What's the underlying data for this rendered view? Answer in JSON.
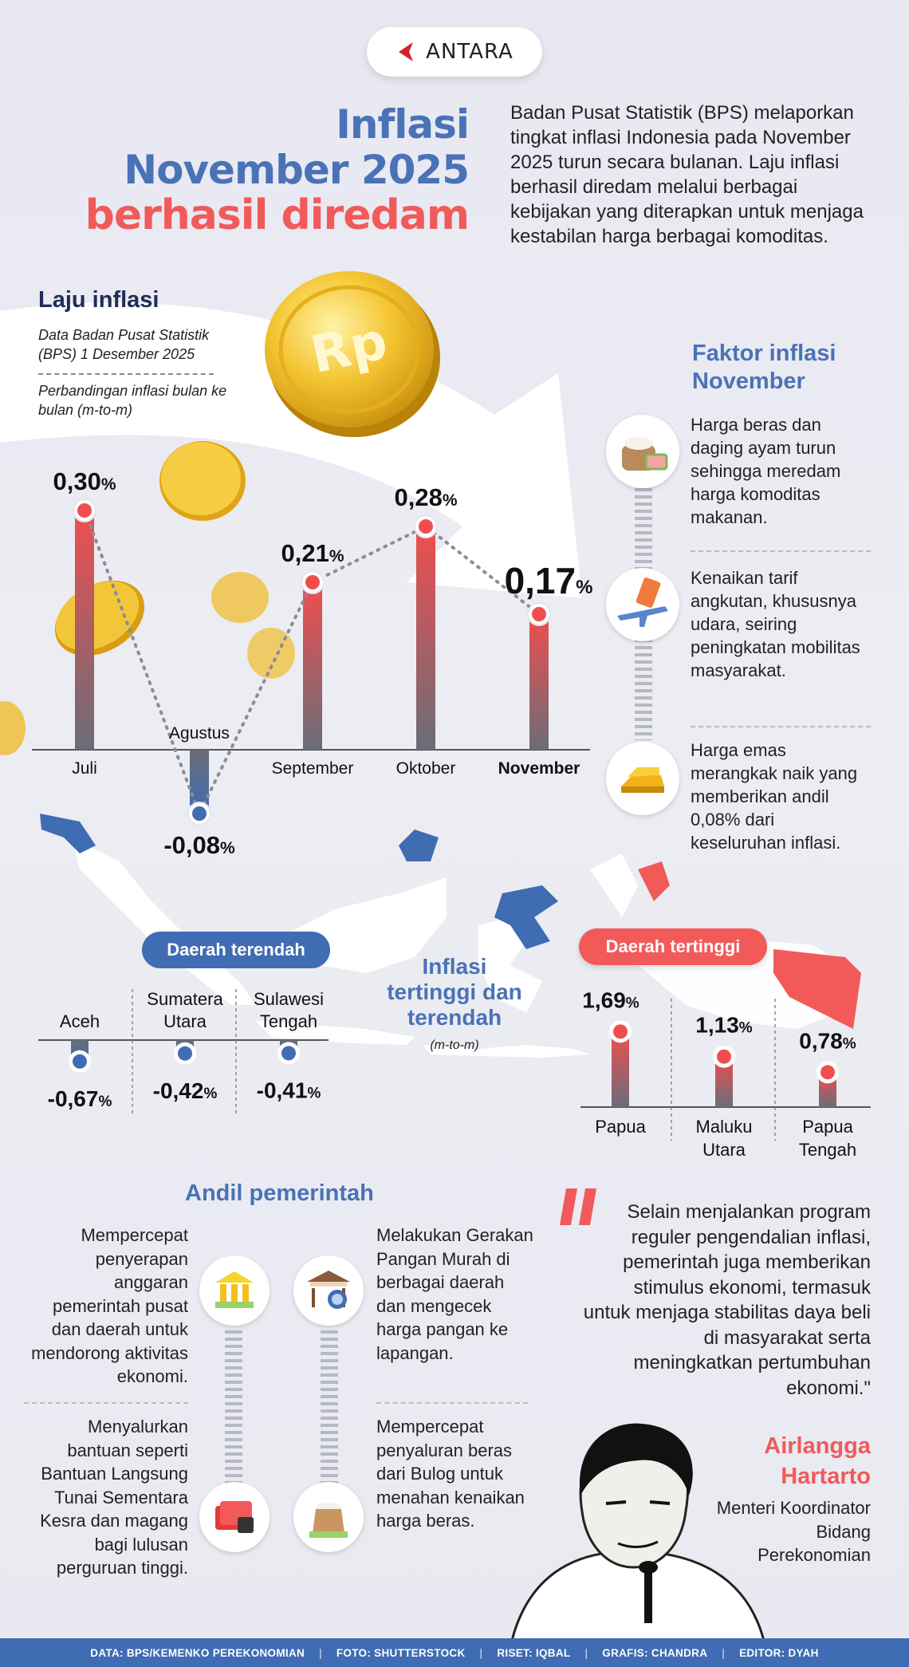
{
  "brand": {
    "logo_text": "ANTARA",
    "accent": "#f15a5a",
    "blue": "#4a72b6"
  },
  "title": {
    "line1": "Inflasi",
    "line2": "November 2025",
    "line3": "berhasil diredam"
  },
  "intro": "Badan Pusat Statistik (BPS) melaporkan tingkat inflasi Indonesia pada November 2025 turun secara bulanan. Laju inflasi berhasil diredam melalui berbagai kebijakan yang diterapkan untuk menjaga kestabilan harga berbagai komoditas.",
  "laju": {
    "title": "Laju inflasi",
    "source": "Data Badan Pusat Statistik (BPS) 1 Desember 2025",
    "note": "Perbandingan inflasi bulan ke bulan (m-to-m)",
    "coin_text": "Rp"
  },
  "chart_data": {
    "type": "bar",
    "categories": [
      "Juli",
      "Agustus",
      "September",
      "Oktober",
      "November"
    ],
    "values": [
      0.3,
      -0.08,
      0.21,
      0.28,
      0.17
    ],
    "value_labels": [
      "0,30",
      "-0,08",
      "0,21",
      "0,28",
      "0,17"
    ],
    "unit": "%",
    "highlight": "November"
  },
  "factors": {
    "title": "Faktor inflasi November",
    "items": [
      {
        "icon": "rice-meat-icon",
        "text": "Harga beras dan daging ayam turun sehingga meredam harga komoditas makanan."
      },
      {
        "icon": "airplane-ticket-icon",
        "text": "Kenaikan tarif angkutan, khususnya udara, seiring peningkatan mobilitas masyarakat."
      },
      {
        "icon": "gold-bar-icon",
        "text": "Harga emas merangkak naik yang memberikan andil 0,08% dari keseluruhan inflasi."
      }
    ]
  },
  "regions": {
    "center_title": "Inflasi tertinggi dan terendah",
    "center_sub": "(m-to-m)",
    "lowest": {
      "label": "Daerah terendah",
      "items": [
        {
          "name": "Aceh",
          "value": -0.67,
          "value_label": "-0,67"
        },
        {
          "name": "Sumatera Utara",
          "value": -0.42,
          "value_label": "-0,42"
        },
        {
          "name": "Sulawesi Tengah",
          "value": -0.41,
          "value_label": "-0,41"
        }
      ]
    },
    "highest": {
      "label": "Daerah tertinggi",
      "items": [
        {
          "name": "Papua",
          "value": 1.69,
          "value_label": "1,69"
        },
        {
          "name": "Maluku Utara",
          "value": 1.13,
          "value_label": "1,13"
        },
        {
          "name": "Papua Tengah",
          "value": 0.78,
          "value_label": "0,78"
        }
      ]
    },
    "unit": "%"
  },
  "andil": {
    "title": "Andil pemerintah",
    "items": [
      {
        "icon": "bank-building-icon",
        "text": "Mempercepat penyerapan anggaran pemerintah pusat dan daerah untuk mendorong aktivitas ekonomi."
      },
      {
        "icon": "market-stall-icon",
        "text": "Melakukan Gerakan Pangan Murah di berbagai daerah dan mengecek harga pangan ke lapangan."
      },
      {
        "icon": "cash-money-icon",
        "text": "Menyalurkan bantuan seperti Bantuan Langsung Tunai Sementara Kesra dan magang bagi lulusan perguruan tinggi."
      },
      {
        "icon": "rice-sack-icon",
        "text": "Mempercepat penyaluran beras dari Bulog untuk menahan kenaikan harga beras."
      }
    ]
  },
  "quote": {
    "text": "Selain menjalankan program reguler pengendalian inflasi, pemerintah juga memberikan stimulus ekonomi, termasuk untuk menjaga stabilitas daya beli di masyarakat serta meningkatkan pertumbuhan ekonomi.\"",
    "name_line1": "Airlangga",
    "name_line2": "Hartarto",
    "role": "Menteri Koordinator Bidang Perekonomian"
  },
  "footer": {
    "data": "DATA: BPS/KEMENKO PEREKONOMIAN",
    "foto": "FOTO: SHUTTERSTOCK",
    "riset": "RISET: IQBAL",
    "grafis": "GRAFIS: CHANDRA",
    "editor": "EDITOR: DYAH",
    "divider": "|"
  }
}
